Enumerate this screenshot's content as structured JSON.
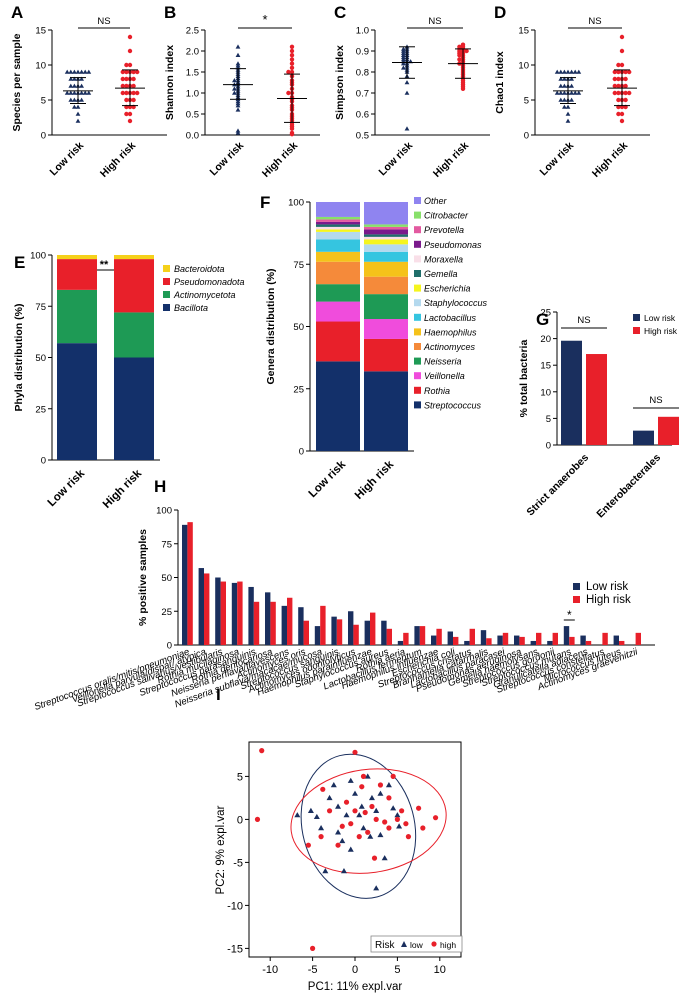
{
  "colors": {
    "low": "#1a2f5e",
    "high": "#e8202a",
    "axis": "#000000"
  },
  "chart_data": [
    {
      "panel": "A",
      "type": "scatter",
      "ylabel": "Species per sample",
      "categories": [
        "Low risk",
        "High risk"
      ],
      "ylim": [
        0,
        15
      ],
      "yticks": [
        0,
        5,
        10,
        15
      ],
      "sig": "NS",
      "summary": {
        "Low risk": {
          "mean": 6.3,
          "sd": [
            4.5,
            8.2
          ]
        },
        "High risk": {
          "mean": 6.7,
          "sd": [
            4.2,
            9.3
          ]
        }
      },
      "points": {
        "Low risk": [
          9,
          9,
          9,
          9,
          9,
          9,
          9,
          8,
          8,
          8,
          8,
          7,
          7,
          7,
          7,
          6,
          6,
          6,
          6,
          6,
          6,
          6,
          5,
          5,
          5,
          5,
          4,
          4,
          3,
          2
        ],
        "High risk": [
          14,
          12,
          10,
          10,
          9,
          9,
          9,
          9,
          9,
          8,
          8,
          8,
          8,
          7,
          7,
          7,
          7,
          6,
          6,
          6,
          6,
          6,
          5,
          5,
          5,
          4,
          4,
          4,
          3,
          3,
          2
        ]
      }
    },
    {
      "panel": "B",
      "type": "scatter",
      "ylabel": "Shannon index",
      "categories": [
        "Low risk",
        "High risk"
      ],
      "ylim": [
        0,
        2.5
      ],
      "yticks": [
        0.0,
        0.5,
        1.0,
        1.5,
        2.0,
        2.5
      ],
      "sig": "*",
      "summary": {
        "Low risk": {
          "mean": 1.2,
          "sd": [
            0.85,
            1.58
          ]
        },
        "High risk": {
          "mean": 0.87,
          "sd": [
            0.3,
            1.45
          ]
        }
      },
      "points": {
        "Low risk": [
          2.1,
          1.9,
          1.7,
          1.65,
          1.6,
          1.55,
          1.5,
          1.45,
          1.4,
          1.35,
          1.3,
          1.3,
          1.25,
          1.2,
          1.2,
          1.15,
          1.1,
          1.1,
          1.05,
          1.0,
          1.0,
          0.95,
          0.9,
          0.85,
          0.8,
          0.75,
          0.7,
          0.6,
          0.1,
          0.05
        ],
        "High risk": [
          2.1,
          2.0,
          1.9,
          1.8,
          1.7,
          1.6,
          1.5,
          1.5,
          1.4,
          1.3,
          1.25,
          1.2,
          1.1,
          1.0,
          1.0,
          0.9,
          0.85,
          0.8,
          0.7,
          0.65,
          0.6,
          0.5,
          0.45,
          0.4,
          0.35,
          0.3,
          0.25,
          0.2,
          0.15,
          0.05,
          0.02
        ]
      }
    },
    {
      "panel": "C",
      "type": "scatter",
      "ylabel": "Simpson index",
      "categories": [
        "Low risk",
        "High risk"
      ],
      "ylim": [
        0.5,
        1.0
      ],
      "yticks": [
        0.5,
        0.6,
        0.7,
        0.8,
        0.9,
        1.0
      ],
      "sig": "NS",
      "summary": {
        "Low risk": {
          "mean": 0.845,
          "sd": [
            0.77,
            0.92
          ]
        },
        "High risk": {
          "mean": 0.84,
          "sd": [
            0.77,
            0.91
          ]
        }
      },
      "points": {
        "Low risk": [
          0.92,
          0.91,
          0.91,
          0.9,
          0.9,
          0.89,
          0.89,
          0.88,
          0.88,
          0.87,
          0.87,
          0.86,
          0.86,
          0.85,
          0.85,
          0.85,
          0.84,
          0.84,
          0.83,
          0.82,
          0.82,
          0.81,
          0.8,
          0.78,
          0.75,
          0.7,
          0.53
        ],
        "High risk": [
          0.93,
          0.92,
          0.92,
          0.91,
          0.91,
          0.9,
          0.9,
          0.9,
          0.89,
          0.89,
          0.88,
          0.88,
          0.87,
          0.86,
          0.86,
          0.85,
          0.84,
          0.84,
          0.83,
          0.82,
          0.81,
          0.8,
          0.79,
          0.78,
          0.77,
          0.76,
          0.75,
          0.74,
          0.73,
          0.72
        ]
      }
    },
    {
      "panel": "D",
      "type": "scatter",
      "ylabel": "Chao1 index",
      "categories": [
        "Low risk",
        "High risk"
      ],
      "ylim": [
        0,
        15
      ],
      "yticks": [
        0,
        5,
        10,
        15
      ],
      "sig": "NS",
      "summary": {
        "Low risk": {
          "mean": 6.3,
          "sd": [
            4.5,
            8.2
          ]
        },
        "High risk": {
          "mean": 6.7,
          "sd": [
            4.2,
            9.3
          ]
        }
      },
      "points": {
        "Low risk": [
          9,
          9,
          9,
          9,
          9,
          9,
          9,
          8,
          8,
          8,
          8,
          7,
          7,
          7,
          7,
          6,
          6,
          6,
          6,
          6,
          6,
          6,
          5,
          5,
          5,
          5,
          4,
          4,
          3,
          2
        ],
        "High risk": [
          14,
          12,
          10,
          10,
          9,
          9,
          9,
          9,
          9,
          8,
          8,
          8,
          8,
          7,
          7,
          7,
          7,
          6,
          6,
          6,
          6,
          6,
          5,
          5,
          5,
          4,
          4,
          4,
          3,
          3,
          2
        ]
      }
    },
    {
      "panel": "E",
      "type": "bar",
      "stacked": true,
      "ylabel": "Phyla distribution (%)",
      "categories": [
        "Low risk",
        "High risk"
      ],
      "ylim": [
        0,
        100
      ],
      "yticks": [
        0,
        25,
        50,
        75,
        100
      ],
      "sig": "**",
      "series": [
        {
          "name": "Bacillota",
          "color": "#13306a",
          "values": [
            57,
            50
          ]
        },
        {
          "name": "Actinomycetota",
          "color": "#1e9a55",
          "values": [
            26,
            22
          ]
        },
        {
          "name": "Pseudomonadota",
          "color": "#e8202a",
          "values": [
            15,
            26
          ]
        },
        {
          "name": "Bacteroidota",
          "color": "#f5d11a",
          "values": [
            2,
            2
          ]
        }
      ],
      "legend": [
        "Bacteroidota",
        "Pseudomonadota",
        "Actinomycetota",
        "Bacillota"
      ]
    },
    {
      "panel": "F",
      "type": "bar",
      "stacked": true,
      "ylabel": "Genera distribution (%)",
      "categories": [
        "Low risk",
        "High risk"
      ],
      "ylim": [
        0,
        100
      ],
      "yticks": [
        0,
        25,
        50,
        75,
        100
      ],
      "series": [
        {
          "name": "Streptococcus",
          "color": "#13306a",
          "values": [
            36,
            32
          ]
        },
        {
          "name": "Rothia",
          "color": "#e8202a",
          "values": [
            16,
            13
          ]
        },
        {
          "name": "Veillonella",
          "color": "#f04cdc",
          "values": [
            8,
            8
          ]
        },
        {
          "name": "Neisseria",
          "color": "#1e9a55",
          "values": [
            7,
            10
          ]
        },
        {
          "name": "Actinomyces",
          "color": "#f58a3a",
          "values": [
            9,
            7
          ]
        },
        {
          "name": "Haemophilus",
          "color": "#f5c21a",
          "values": [
            4,
            6
          ]
        },
        {
          "name": "Lactobacillus",
          "color": "#35c5e0",
          "values": [
            5,
            4
          ]
        },
        {
          "name": "Staphylococcus",
          "color": "#b4d9ee",
          "values": [
            3,
            3
          ]
        },
        {
          "name": "Escherichia",
          "color": "#f5f51e",
          "values": [
            1,
            2
          ]
        },
        {
          "name": "Moraxella",
          "color": "#f9dfe8",
          "values": [
            1,
            1
          ]
        },
        {
          "name": "Gemella",
          "color": "#1f6e6a",
          "values": [
            1,
            1
          ]
        },
        {
          "name": "Pseudomonas",
          "color": "#7a1a8c",
          "values": [
            1,
            2
          ]
        },
        {
          "name": "Prevotella",
          "color": "#e35aa0",
          "values": [
            1,
            1
          ]
        },
        {
          "name": "Citrobacter",
          "color": "#88e06a",
          "values": [
            1,
            1
          ]
        },
        {
          "name": "Other",
          "color": "#8f84f0",
          "values": [
            6,
            9
          ]
        }
      ],
      "legend": [
        "Other",
        "Citrobacter",
        "Prevotella",
        "Pseudomonas",
        "Moraxella",
        "Gemella",
        "Escherichia",
        "Staphylococcus",
        "Lactobacillus",
        "Haemophilus",
        "Actinomyces",
        "Neisseria",
        "Veillonella",
        "Rothia",
        "Streptococcus"
      ]
    },
    {
      "panel": "G",
      "type": "bar",
      "ylabel": "% total bacteria",
      "categories": [
        "Strict anaerobes",
        "Enterobacterales"
      ],
      "ylim": [
        0,
        25
      ],
      "yticks": [
        0,
        5,
        10,
        15,
        20,
        25
      ],
      "series": [
        {
          "name": "Low risk",
          "values": [
            19.6,
            2.7
          ]
        },
        {
          "name": "High risk",
          "values": [
            17.1,
            5.3
          ]
        }
      ],
      "sig": [
        "NS",
        "NS"
      ]
    },
    {
      "panel": "H",
      "type": "bar",
      "ylabel": "% positive samples",
      "ylim": [
        0,
        100
      ],
      "yticks": [
        0,
        25,
        50,
        75,
        100
      ],
      "categories": [
        "Streptococcus oralis/mitis/pneumoniae",
        "Veillonella parvula/dispar/ atypica",
        "Streptococcus salivarius/vestibularis",
        "Rothia mucilaginosa",
        "Streptococcus parasanguinis",
        "Rothia dentocariosa",
        "Neisseria perflava/flavescens",
        "Actinomyces oris",
        "Neisseria subflava/macacae/mucosa",
        "Streptococcus sanguinis",
        "Actinomyces odontolyticus",
        "Haemophilus parainfluenzae",
        "Staphylococcus aureus",
        "Rothia aeria",
        "Lactobacillus fermentum",
        "Haemophilus influenzae",
        "Escherichia coli",
        "Streptococcus cristatus",
        "Branhamella catarrhalis",
        "Lactobacillus paracasei",
        "Pseudomonas aeruginosa",
        "Gemella haemolysans",
        "Streptococcus gordonii",
        "Streptococcus mutans",
        "Granulicatella adiacens",
        "Streptococcus constellatus",
        "Micrococcus luteus",
        "Actinomyces graevenitzii"
      ],
      "series": [
        {
          "name": "Low risk",
          "values": [
            89,
            57,
            50,
            46,
            43,
            39,
            29,
            28,
            14,
            21,
            25,
            18,
            18,
            3,
            14,
            7,
            10,
            3,
            11,
            7,
            7,
            3,
            3,
            14,
            7,
            0,
            7,
            0
          ]
        },
        {
          "name": "High risk",
          "values": [
            91,
            53,
            47,
            47,
            32,
            32,
            35,
            18,
            29,
            19,
            15,
            24,
            12,
            9,
            14,
            12,
            6,
            12,
            5,
            9,
            6,
            9,
            9,
            6,
            3,
            9,
            3,
            9
          ]
        }
      ],
      "sig_label": "*",
      "legend": [
        "Low risk",
        "High risk"
      ]
    },
    {
      "panel": "I",
      "type": "scatter",
      "xlabel": "PC1: 11% expl.var",
      "ylabel": "PC2: 9% expl.var",
      "xlim": [
        -12.5,
        12.5
      ],
      "ylim": [
        -16,
        9
      ],
      "xticks": [
        -10,
        -5,
        0,
        5,
        10
      ],
      "yticks": [
        -15,
        -10,
        -5,
        0,
        5
      ],
      "legend_title": "Risk",
      "legend": [
        "low",
        "high"
      ],
      "series": [
        {
          "name": "low",
          "points": [
            [
              -6.8,
              0.5
            ],
            [
              -5.2,
              1.0
            ],
            [
              -4.5,
              0.3
            ],
            [
              -4,
              -1
            ],
            [
              -3,
              2.5
            ],
            [
              -2.5,
              4
            ],
            [
              -2,
              -1.5
            ],
            [
              -1.5,
              -2.5
            ],
            [
              -1,
              0.5
            ],
            [
              -0.5,
              4.5
            ],
            [
              0,
              3.0
            ],
            [
              0.5,
              0.5
            ],
            [
              1,
              -1
            ],
            [
              1.5,
              5
            ],
            [
              1.8,
              -2
            ],
            [
              2,
              2.5
            ],
            [
              2.5,
              1
            ],
            [
              3,
              -1.8
            ],
            [
              3,
              3.0
            ],
            [
              3.5,
              -4.5
            ],
            [
              4.5,
              1.3
            ],
            [
              5,
              0.5
            ],
            [
              -1.3,
              -6
            ],
            [
              2.5,
              -8
            ],
            [
              -3.5,
              -6
            ],
            [
              -2,
              1.5
            ],
            [
              -0.5,
              -3.5
            ],
            [
              0.8,
              1.5
            ],
            [
              4,
              4
            ],
            [
              5.2,
              -0.8
            ]
          ]
        },
        {
          "name": "high",
          "points": [
            [
              -11,
              8
            ],
            [
              -11.5,
              0
            ],
            [
              -5,
              -15
            ],
            [
              -5.5,
              -3
            ],
            [
              -4,
              -2
            ],
            [
              -3,
              1
            ],
            [
              -2,
              -3
            ],
            [
              -1.5,
              -0.8
            ],
            [
              -1,
              2.0
            ],
            [
              -0.5,
              -0.5
            ],
            [
              0,
              7.8
            ],
            [
              0,
              1
            ],
            [
              0.5,
              -2
            ],
            [
              0.8,
              3.8
            ],
            [
              1,
              5
            ],
            [
              1.5,
              -1.5
            ],
            [
              2,
              1.5
            ],
            [
              2.3,
              -4.5
            ],
            [
              2.5,
              0
            ],
            [
              3,
              4
            ],
            [
              3.5,
              -0.3
            ],
            [
              4,
              -1
            ],
            [
              4,
              2.5
            ],
            [
              4.5,
              5
            ],
            [
              5,
              0
            ],
            [
              5.5,
              1
            ],
            [
              6,
              -0.5
            ],
            [
              6.3,
              -2
            ],
            [
              7.5,
              1.3
            ],
            [
              8,
              -1
            ],
            [
              9.5,
              0.2
            ],
            [
              -3.8,
              3.5
            ],
            [
              1.2,
              0.8
            ]
          ]
        }
      ],
      "ellipses": [
        {
          "name": "low",
          "cx": 0.4,
          "cy": -0.8,
          "rx": 6.6,
          "ry": 8.5,
          "angle": -15
        },
        {
          "name": "high",
          "cx": 1.6,
          "cy": -0.2,
          "rx": 9.2,
          "ry": 6.0,
          "angle": -8
        }
      ]
    }
  ]
}
